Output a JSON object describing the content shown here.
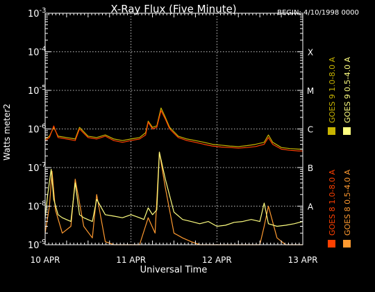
{
  "chart_data": {
    "type": "line",
    "title": "X-Ray Flux (Five Minute)",
    "begin_label": "BEGIN: 4/10/1998 0000",
    "ylabel": "Watts meter2",
    "xlabel": "Universal Time",
    "y_scale": "log",
    "ylim": [
      1e-09,
      0.001
    ],
    "y_ticks": [
      {
        "base": "10",
        "exp": "-3"
      },
      {
        "base": "10",
        "exp": "-4"
      },
      {
        "base": "10",
        "exp": "-5"
      },
      {
        "base": "10",
        "exp": "-6"
      },
      {
        "base": "10",
        "exp": "-7"
      },
      {
        "base": "10",
        "exp": "-8"
      },
      {
        "base": "10",
        "exp": "-9"
      }
    ],
    "x_ticks": [
      "10 APR",
      "11 APR",
      "12 APR",
      "13 APR"
    ],
    "xlim_days": [
      10,
      13
    ],
    "flare_classes": [
      {
        "label": "X",
        "flux": 0.0001
      },
      {
        "label": "M",
        "flux": 1e-05
      },
      {
        "label": "C",
        "flux": 1e-06
      },
      {
        "label": "B",
        "flux": 1e-07
      },
      {
        "label": "A",
        "flux": 1e-08
      }
    ],
    "grid": true,
    "legend": {
      "placement": "right-vertical",
      "entries": [
        {
          "name": "GOES 8 1.0-8.0 A",
          "color": "#ff4000"
        },
        {
          "name": "GOES 8 0.5-4.0 A",
          "color": "#ff9a30"
        },
        {
          "name": "GOES 9 1.0-8.0 A",
          "color": "#c8b400"
        },
        {
          "name": "GOES 9 0.5-4.0 A",
          "color": "#ffff80"
        }
      ]
    },
    "series": [
      {
        "name": "GOES 8 1.0-8.0 A",
        "color": "#ff4000",
        "x": [
          10.0,
          10.05,
          10.1,
          10.15,
          10.25,
          10.35,
          10.4,
          10.5,
          10.6,
          10.7,
          10.8,
          10.9,
          11.0,
          11.1,
          11.17,
          11.2,
          11.25,
          11.3,
          11.35,
          11.4,
          11.45,
          11.55,
          11.65,
          11.75,
          11.85,
          11.95,
          12.05,
          12.15,
          12.25,
          12.35,
          12.45,
          12.55,
          12.6,
          12.65,
          12.75,
          12.85,
          12.95,
          13.0
        ],
        "y": [
          5e-07,
          6e-07,
          1.2e-06,
          6e-07,
          5.5e-07,
          5e-07,
          1e-06,
          6e-07,
          5.5e-07,
          6.5e-07,
          5e-07,
          4.5e-07,
          5e-07,
          5.5e-07,
          7e-07,
          1.5e-06,
          1e-06,
          1.1e-06,
          3e-06,
          1.8e-06,
          1e-06,
          6e-07,
          5e-07,
          4.5e-07,
          4e-07,
          3.6e-07,
          3.4e-07,
          3.3e-07,
          3.2e-07,
          3.3e-07,
          3.5e-07,
          4e-07,
          6e-07,
          4e-07,
          3e-07,
          2.8e-07,
          2.7e-07,
          2.7e-07
        ]
      },
      {
        "name": "GOES 8 0.5-4.0 A",
        "color": "#ff9a30",
        "x": [
          10.0,
          10.05,
          10.08,
          10.12,
          10.2,
          10.3,
          10.35,
          10.45,
          10.55,
          10.6,
          10.7,
          10.8,
          10.9,
          11.0,
          11.1,
          11.2,
          11.28,
          11.33,
          11.4,
          11.5,
          11.6,
          11.7,
          11.8,
          11.9,
          12.0,
          12.1,
          12.2,
          12.3,
          12.4,
          12.5,
          12.55,
          12.6,
          12.7,
          12.8,
          12.9,
          13.0
        ],
        "y": [
          2e-09,
          1e-08,
          8e-08,
          8e-09,
          2e-09,
          3e-09,
          5e-08,
          3e-09,
          1.5e-09,
          2e-08,
          1.2e-09,
          1e-09,
          1e-09,
          1e-09,
          1e-09,
          5e-09,
          2e-09,
          2.5e-07,
          3e-08,
          2e-09,
          1.5e-09,
          1.2e-09,
          1e-09,
          1e-09,
          1e-09,
          1e-09,
          1e-09,
          1e-09,
          1e-09,
          1e-09,
          3e-09,
          1e-08,
          1.5e-09,
          1e-09,
          1e-09,
          1e-09
        ]
      },
      {
        "name": "GOES 9 1.0-8.0 A",
        "color": "#c8b400",
        "x": [
          10.0,
          10.05,
          10.1,
          10.15,
          10.25,
          10.35,
          10.4,
          10.5,
          10.6,
          10.7,
          10.8,
          10.9,
          11.0,
          11.1,
          11.17,
          11.2,
          11.25,
          11.3,
          11.35,
          11.4,
          11.45,
          11.55,
          11.65,
          11.75,
          11.85,
          11.95,
          12.05,
          12.15,
          12.25,
          12.35,
          12.45,
          12.55,
          12.6,
          12.65,
          12.75,
          12.85,
          12.95,
          13.0
        ],
        "y": [
          5.5e-07,
          6.5e-07,
          1.1e-06,
          6.5e-07,
          6e-07,
          5.5e-07,
          1.1e-06,
          6.5e-07,
          6e-07,
          7e-07,
          5.5e-07,
          5e-07,
          5.5e-07,
          6e-07,
          8e-07,
          1.6e-06,
          1.1e-06,
          1.2e-06,
          3.5e-06,
          2e-06,
          1.1e-06,
          6.5e-07,
          5.5e-07,
          5e-07,
          4.5e-07,
          4e-07,
          3.8e-07,
          3.6e-07,
          3.5e-07,
          3.7e-07,
          4e-07,
          4.5e-07,
          7e-07,
          4.5e-07,
          3.3e-07,
          3.1e-07,
          3e-07,
          3e-07
        ]
      },
      {
        "name": "GOES 9 0.5-4.0 A",
        "color": "#ffff80",
        "x": [
          10.0,
          10.03,
          10.07,
          10.1,
          10.15,
          10.2,
          10.3,
          10.35,
          10.4,
          10.45,
          10.55,
          10.6,
          10.7,
          10.8,
          10.9,
          11.0,
          11.1,
          11.15,
          11.2,
          11.25,
          11.3,
          11.33,
          11.4,
          11.5,
          11.6,
          11.7,
          11.8,
          11.9,
          12.0,
          12.1,
          12.2,
          12.3,
          12.4,
          12.5,
          12.55,
          12.6,
          12.7,
          12.8,
          12.9,
          13.0
        ],
        "y": [
          5e-09,
          2e-08,
          9e-08,
          1.5e-08,
          6e-09,
          5e-09,
          4e-09,
          4e-08,
          6e-09,
          5e-09,
          4e-09,
          1.5e-08,
          6e-09,
          5.5e-09,
          5e-09,
          6e-09,
          5e-09,
          4.5e-09,
          9e-09,
          6e-09,
          8e-09,
          2.5e-07,
          5e-08,
          7e-09,
          4.5e-09,
          4e-09,
          3.5e-09,
          4e-09,
          3e-09,
          3.2e-09,
          3.8e-09,
          4e-09,
          4.5e-09,
          4e-09,
          1.2e-08,
          3.5e-09,
          3e-09,
          3.2e-09,
          3.5e-09,
          4e-09
        ]
      }
    ]
  }
}
